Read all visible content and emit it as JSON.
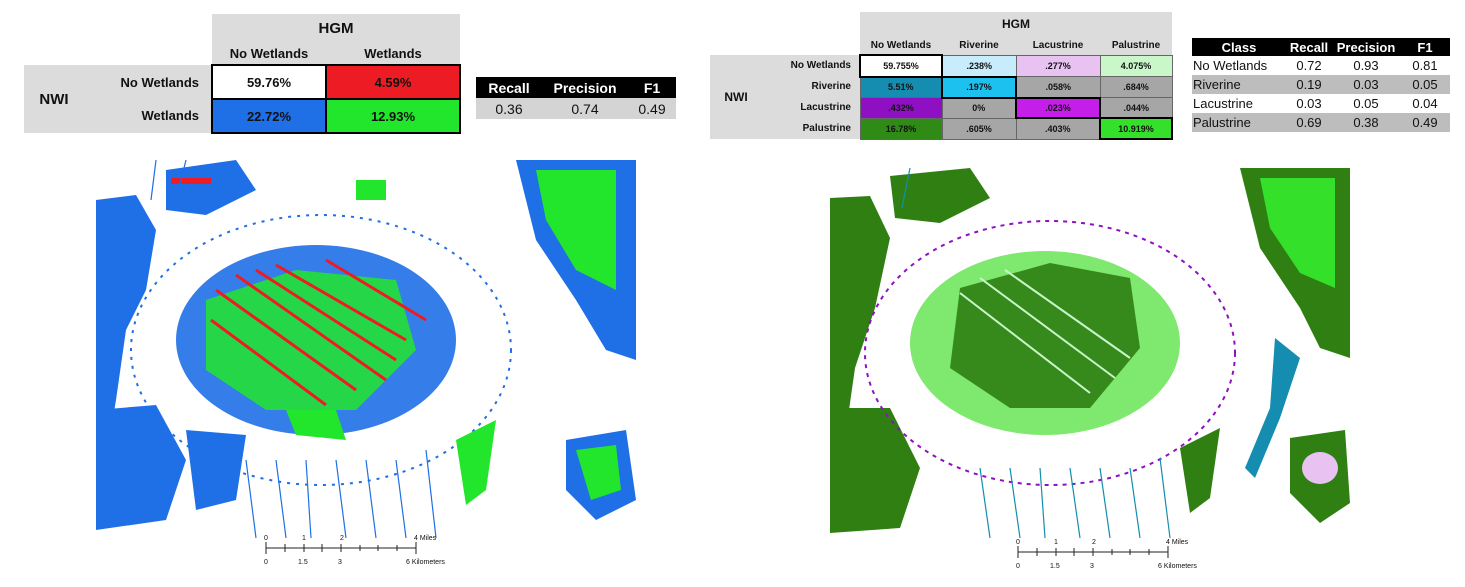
{
  "colors": {
    "true_negative": "#ffffff",
    "false_positive": "#ed1c24",
    "false_negative": "#1f6fe6",
    "true_positive": "#22e62b",
    "header_grey": "#dcdcdc",
    "r_riverine": "#c7ecfb",
    "r_lacustrine": "#e8c3f1",
    "r_palustrine": "#c9f7c9",
    "riverine_main": "#158db0",
    "riverine_cell": "#1cc1f0",
    "lacustrine_main": "#8e10c2",
    "lacustrine_cell": "#c41ee8",
    "palustrine_main": "#2f8a16",
    "palustrine_cell": "#34e02a",
    "cell_grey": "#a6a6a6",
    "water_blue": "#2a6fd9",
    "dark_green": "#2f7f13",
    "light_green": "#7fe86e"
  },
  "left": {
    "matrix": {
      "top_label": "HGM",
      "row_group_label": "NWI",
      "col_headers": [
        "No Wetlands",
        "Wetlands"
      ],
      "row_headers": [
        "No Wetlands",
        "Wetlands"
      ],
      "cells": [
        [
          "59.76%",
          "4.59%"
        ],
        [
          "22.72%",
          "12.93%"
        ]
      ]
    },
    "metrics": {
      "headers": [
        "Recall",
        "Precision",
        "F1"
      ],
      "values": [
        "0.36",
        "0.74",
        "0.49"
      ]
    },
    "scalebar": {
      "miles_ticks": [
        "0",
        "1",
        "2",
        "4 Miles"
      ],
      "km_ticks": [
        "0",
        "1.5",
        "3",
        "6 Kilometers"
      ]
    }
  },
  "right": {
    "matrix": {
      "top_label": "HGM",
      "row_group_label": "NWI",
      "col_headers": [
        "No Wetlands",
        "Riverine",
        "Lacustrine",
        "Palustrine"
      ],
      "row_headers": [
        "No Wetlands",
        "Riverine",
        "Lacustrine",
        "Palustrine"
      ],
      "cells": [
        [
          "59.755%",
          ".238%",
          ".277%",
          "4.075%"
        ],
        [
          "5.51%",
          ".197%",
          ".058%",
          ".684%"
        ],
        [
          ".432%",
          "0%",
          ".023%",
          ".044%"
        ],
        [
          "16.78%",
          ".605%",
          ".403%",
          "10.919%"
        ]
      ]
    },
    "metrics": {
      "headers": [
        "Class",
        "Recall",
        "Precision",
        "F1"
      ],
      "rows": [
        [
          "No Wetlands",
          "0.72",
          "0.93",
          "0.81"
        ],
        [
          "Riverine",
          "0.19",
          "0.03",
          "0.05"
        ],
        [
          "Lacustrine",
          "0.03",
          "0.05",
          "0.04"
        ],
        [
          "Palustrine",
          "0.69",
          "0.38",
          "0.49"
        ]
      ]
    },
    "scalebar": {
      "miles_ticks": [
        "0",
        "1",
        "2",
        "4 Miles"
      ],
      "km_ticks": [
        "0",
        "1.5",
        "3",
        "6 Kilometers"
      ]
    }
  }
}
